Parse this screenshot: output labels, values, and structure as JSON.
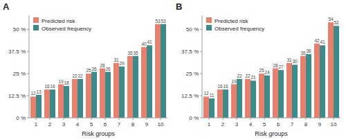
{
  "chart_data": [
    {
      "type": "bar",
      "title": "A",
      "xlabel": "Risk groups",
      "categories": [
        "1",
        "2",
        "3",
        "4",
        "5",
        "6",
        "7",
        "8",
        "9",
        "10"
      ],
      "series": [
        {
          "name": "Predicted risk",
          "color": "#E8806E",
          "values": [
            12,
            16,
            19,
            22,
            25,
            28,
            31,
            35,
            40,
            53
          ]
        },
        {
          "name": "Observed frequency",
          "color": "#3D8A8A",
          "values": [
            13,
            16,
            18,
            22,
            26,
            26,
            29,
            35,
            41,
            53
          ]
        }
      ],
      "ylim": [
        0,
        58
      ],
      "yticks": [
        {
          "value": 0,
          "label": "0 %"
        },
        {
          "value": 12.5,
          "label": "12.5 %"
        },
        {
          "value": 25,
          "label": "25 %"
        },
        {
          "value": 37.5,
          "label": "37.5 %"
        },
        {
          "value": 50,
          "label": "50 %"
        }
      ],
      "grid": false,
      "legend": "upper left",
      "data_labels": true
    },
    {
      "type": "bar",
      "title": "B",
      "xlabel": "Risk groups",
      "categories": [
        "1",
        "2",
        "3",
        "4",
        "5",
        "6",
        "7",
        "8",
        "9",
        "10"
      ],
      "series": [
        {
          "name": "Predicted risk",
          "color": "#E8806E",
          "values": [
            12,
            16,
            19,
            22,
            25,
            28,
            31,
            35,
            42,
            54
          ]
        },
        {
          "name": "Observed frequency",
          "color": "#3D8A8A",
          "values": [
            11,
            16,
            22,
            21,
            24,
            27,
            30,
            36,
            41,
            52
          ]
        }
      ],
      "ylim": [
        0,
        58
      ],
      "yticks": [
        {
          "value": 0,
          "label": "0 %"
        },
        {
          "value": 12.5,
          "label": "12.5 %"
        },
        {
          "value": 25,
          "label": "25 %"
        },
        {
          "value": 37.5,
          "label": "37.5 %"
        },
        {
          "value": 50,
          "label": "50 %"
        }
      ],
      "grid": false,
      "legend": "upper left",
      "data_labels": true
    }
  ]
}
